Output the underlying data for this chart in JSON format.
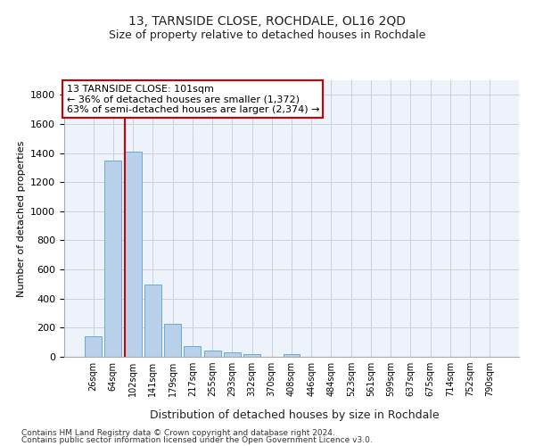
{
  "title": "13, TARNSIDE CLOSE, ROCHDALE, OL16 2QD",
  "subtitle": "Size of property relative to detached houses in Rochdale",
  "xlabel": "Distribution of detached houses by size in Rochdale",
  "ylabel": "Number of detached properties",
  "bar_color": "#b8d0ea",
  "bar_edge_color": "#6aaad4",
  "categories": [
    "26sqm",
    "64sqm",
    "102sqm",
    "141sqm",
    "179sqm",
    "217sqm",
    "255sqm",
    "293sqm",
    "332sqm",
    "370sqm",
    "408sqm",
    "446sqm",
    "484sqm",
    "523sqm",
    "561sqm",
    "599sqm",
    "637sqm",
    "675sqm",
    "714sqm",
    "752sqm",
    "790sqm"
  ],
  "values": [
    140,
    1350,
    1410,
    495,
    225,
    75,
    42,
    28,
    18,
    0,
    18,
    0,
    0,
    0,
    0,
    0,
    0,
    0,
    0,
    0,
    0
  ],
  "ylim": [
    0,
    1900
  ],
  "yticks": [
    0,
    200,
    400,
    600,
    800,
    1000,
    1200,
    1400,
    1600,
    1800
  ],
  "annotation_line1": "13 TARNSIDE CLOSE: 101sqm",
  "annotation_line2": "← 36% of detached houses are smaller (1,372)",
  "annotation_line3": "63% of semi-detached houses are larger (2,374) →",
  "annotation_box_color": "#ffffff",
  "annotation_border_color": "#cc0000",
  "vline_color": "#cc0000",
  "vline_bar_index": 2,
  "footer_line1": "Contains HM Land Registry data © Crown copyright and database right 2024.",
  "footer_line2": "Contains public sector information licensed under the Open Government Licence v3.0.",
  "background_color": "#eef2fb",
  "grid_color": "#c8cfe0"
}
